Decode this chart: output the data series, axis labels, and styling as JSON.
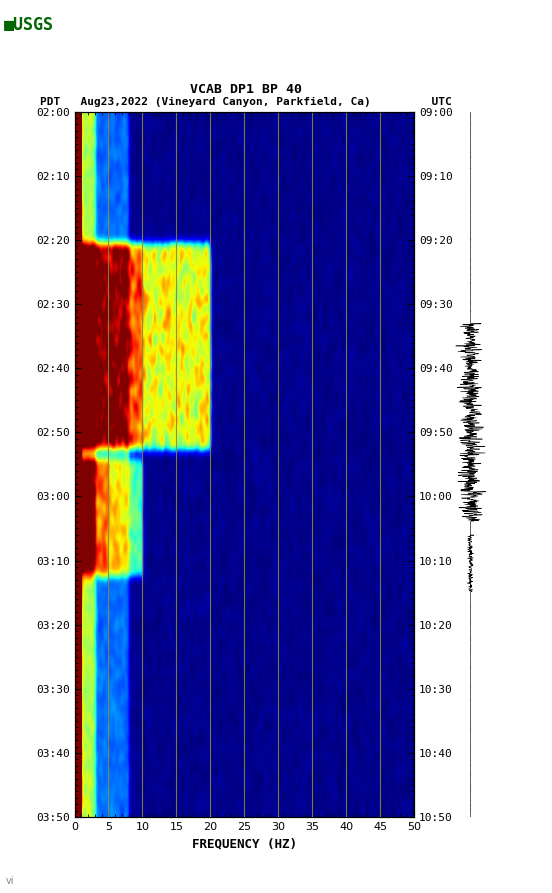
{
  "title_line1": "VCAB DP1 BP 40",
  "title_line2": "PDT   Aug23,2022 (Vineyard Canyon, Parkfield, Ca)         UTC",
  "xlabel": "FREQUENCY (HZ)",
  "freq_min": 0,
  "freq_max": 50,
  "freq_ticks": [
    0,
    5,
    10,
    15,
    20,
    25,
    30,
    35,
    40,
    45,
    50
  ],
  "time_labels_left": [
    "02:00",
    "02:10",
    "02:20",
    "02:30",
    "02:40",
    "02:50",
    "03:00",
    "03:10",
    "03:20",
    "03:30",
    "03:40",
    "03:50"
  ],
  "time_labels_right": [
    "09:00",
    "09:10",
    "09:20",
    "09:30",
    "09:40",
    "09:50",
    "10:00",
    "10:10",
    "10:20",
    "10:30",
    "10:40",
    "10:50"
  ],
  "bg_color": "#ffffff",
  "plot_bg_color": "#00008B",
  "vertical_line_color": "#888840",
  "vertical_lines_freq": [
    5,
    10,
    15,
    20,
    25,
    30,
    35,
    40,
    45
  ],
  "n_time_steps": 240,
  "n_freq_steps": 250,
  "seed": 42
}
